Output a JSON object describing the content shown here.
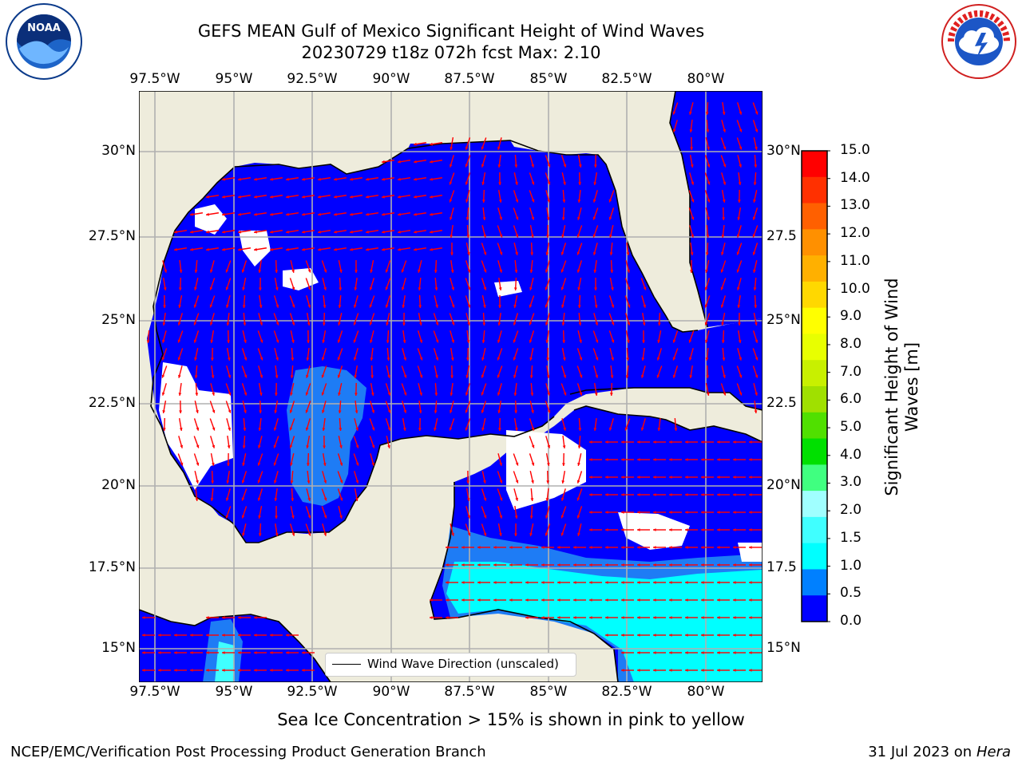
{
  "header": {
    "title": "GEFS MEAN Gulf of Mexico Significant Height of Wind Waves",
    "subtitle": "20230729 t18z 072h fcst   Max: 2.10"
  },
  "caption": "Sea Ice Concentration > 15% is shown in pink to yellow",
  "footer": {
    "left": "NCEP/EMC/Verification Post Processing Product Generation Branch",
    "date": "31 Jul 2023 on ",
    "machine": "Hera"
  },
  "legend": {
    "label": "Wind Wave Direction (unscaled)"
  },
  "logos": {
    "left": "noaa-logo",
    "right": "national-weather-service-logo"
  },
  "map": {
    "lon_labels": [
      "97.5°W",
      "95°W",
      "92.5°W",
      "90°W",
      "87.5°W",
      "85°W",
      "82.5°W",
      "80°W"
    ],
    "lat_labels_left": [
      "30°N",
      "27.5°N",
      "25°N",
      "22.5°N",
      "20°N",
      "17.5°N",
      "15°N"
    ],
    "lat_labels_right": [
      "30°N",
      "27.5",
      "25°N",
      "22.5",
      "20°N",
      "17.5",
      "15°N"
    ],
    "colors": {
      "land": "#eeecdc",
      "ocean_low": "#0000ff",
      "ocean_mid": "#1e7cf5",
      "ocean_high": "#00ffff",
      "arrow": "#ff0000",
      "grid": "#b0b0b0"
    }
  },
  "colorbar": {
    "label": "Significant Height of Wind Waves [m]",
    "ticks": [
      "15.0",
      "14.0",
      "13.0",
      "12.0",
      "11.0",
      "10.0",
      "9.0",
      "8.0",
      "7.0",
      "6.0",
      "5.0",
      "4.0",
      "3.0",
      "2.0",
      "1.5",
      "1.0",
      "0.5",
      "0.0"
    ],
    "colors": [
      "#ff0000",
      "#ff3000",
      "#ff6000",
      "#ff9000",
      "#ffb000",
      "#ffd800",
      "#ffff00",
      "#e8ff00",
      "#c8f000",
      "#a0e000",
      "#50e000",
      "#00e000",
      "#40ff80",
      "#a0ffff",
      "#40ffff",
      "#00ffff",
      "#0080ff",
      "#0000ff"
    ]
  }
}
